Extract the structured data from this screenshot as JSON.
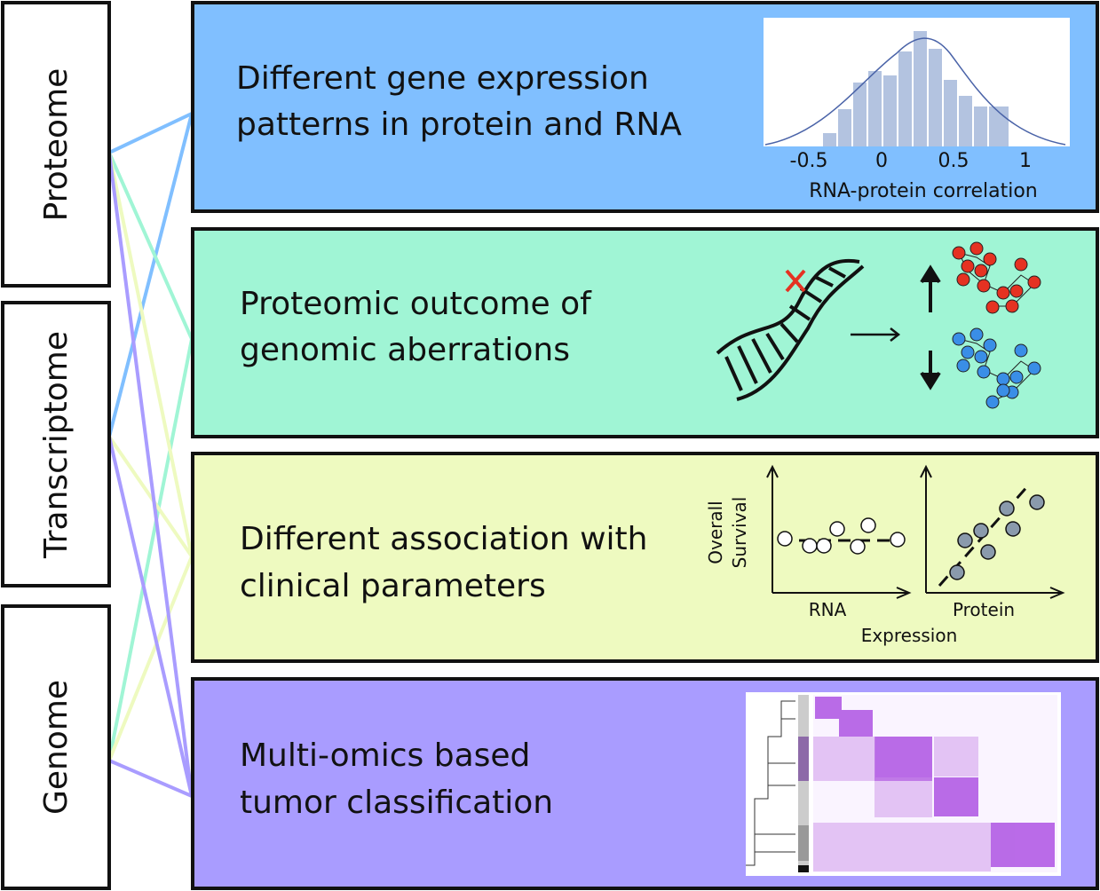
{
  "sources": [
    "Proteome",
    "Transcriptome",
    "Genome"
  ],
  "panels": [
    {
      "lines": [
        "Different gene expression",
        "patterns in protein and RNA"
      ],
      "inset": {
        "xticks": [
          "-0.5",
          "0",
          "0.5",
          "1"
        ],
        "xlabel": "RNA-protein correlation"
      }
    },
    {
      "lines": [
        "Proteomic outcome of",
        "genomic aberrations"
      ]
    },
    {
      "lines": [
        "Different association with",
        "clinical parameters"
      ],
      "inset": {
        "ylabel": [
          "Overall",
          "Survival"
        ],
        "left_xlabel": "RNA",
        "right_xlabel": "Protein",
        "xlabel": "Expression"
      }
    },
    {
      "lines": [
        "Multi-omics based",
        "tumor classification"
      ]
    }
  ]
}
